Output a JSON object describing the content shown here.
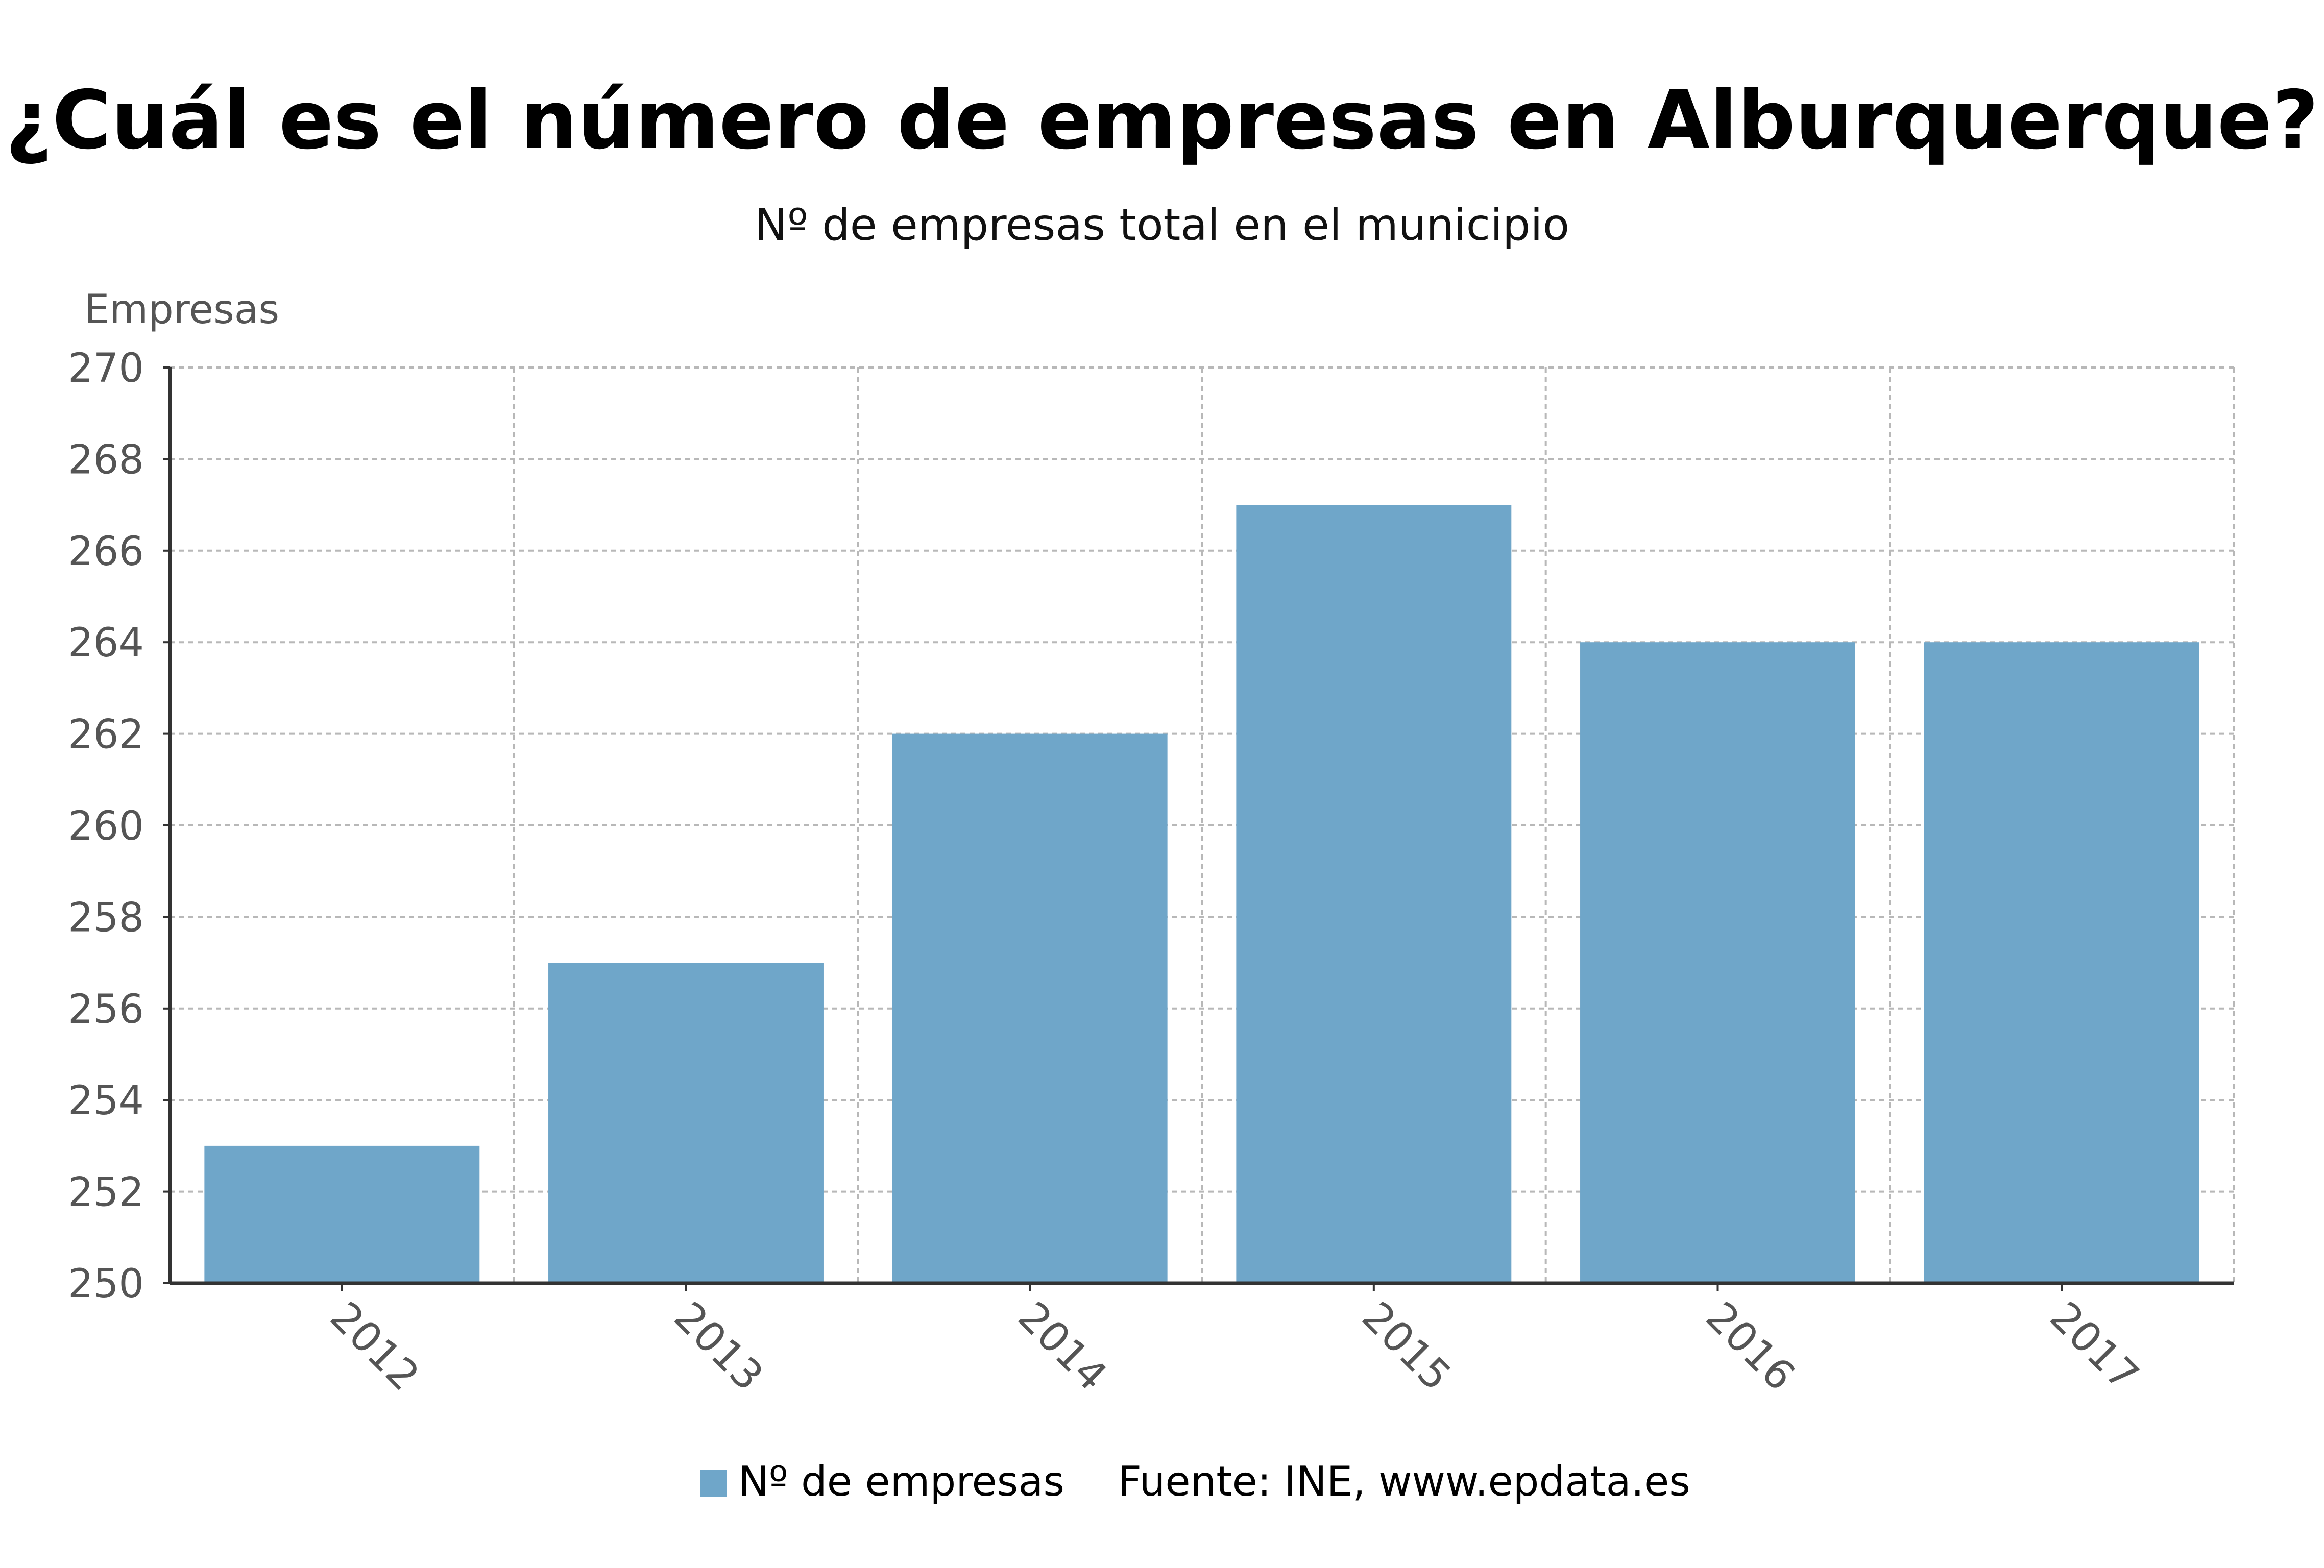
{
  "chart_data": {
    "type": "bar",
    "title": "¿Cuál es el número de empresas en Alburquerque?",
    "subtitle": "Nº de empresas total en el municipio",
    "ylabel": "Empresas",
    "xlabel": "",
    "categories": [
      "2012",
      "2013",
      "2014",
      "2015",
      "2016",
      "2017"
    ],
    "series": [
      {
        "name": "Nº de empresas",
        "values": [
          253,
          257,
          262,
          267,
          264,
          264
        ],
        "color": "#6fa6c9"
      }
    ],
    "ylim": [
      250,
      270
    ],
    "yticks": [
      "250",
      "252",
      "254",
      "256",
      "258",
      "260",
      "262",
      "264",
      "266",
      "268",
      "270"
    ],
    "grid": true,
    "legend_position": "bottom-center"
  },
  "source": "Fuente: INE, www.epdata.es",
  "colors": {
    "bar": "#6fa6c9",
    "grid": "#b8b8b8",
    "axis": "#333333",
    "title": "#000000",
    "tick_text": "#555555"
  }
}
